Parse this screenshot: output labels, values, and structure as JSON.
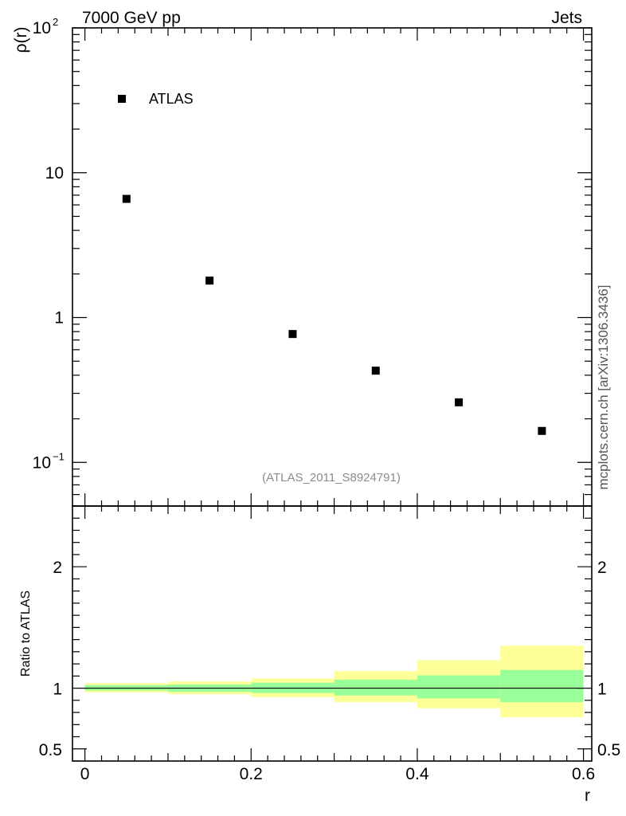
{
  "header": {
    "left_title": "7000 GeV pp",
    "right_title": "Jets"
  },
  "side_label": "mcplots.cern.ch [arXiv:1306.3436]",
  "analysis_label": "(ATLAS_2011_S8924791)",
  "colors": {
    "data_marker": "#000000",
    "band_inner": "#99ff99",
    "band_outer": "#ffff99",
    "frame": "#000000",
    "annotation": "#8c8c8c"
  },
  "chart_data": [
    {
      "type": "scatter",
      "panel": "main",
      "ylabel": "ρ(r)",
      "yscale": "log",
      "ylim": [
        0.05,
        100
      ],
      "xlim": [
        -0.015,
        0.61
      ],
      "y_ticks": [
        {
          "value": 0.1,
          "label": "10",
          "sup": "−1"
        },
        {
          "value": 1,
          "label": "1",
          "sup": ""
        },
        {
          "value": 10,
          "label": "10",
          "sup": ""
        },
        {
          "value": 100,
          "label": "10",
          "sup": "2"
        }
      ],
      "legend": {
        "entries": [
          "ATLAS"
        ],
        "placement": "top-left"
      },
      "series": [
        {
          "name": "ATLAS",
          "x": [
            0.05,
            0.15,
            0.25,
            0.35,
            0.45,
            0.55
          ],
          "y": [
            6.6,
            1.8,
            0.77,
            0.43,
            0.26,
            0.165
          ]
        }
      ]
    },
    {
      "type": "area",
      "panel": "ratio",
      "ylabel": "Ratio to ATLAS",
      "xlabel": "r",
      "ylim": [
        0.4,
        2.5
      ],
      "xlim": [
        -0.015,
        0.61
      ],
      "x_ticks": [
        {
          "value": 0,
          "label": "0"
        },
        {
          "value": 0.2,
          "label": "0.2"
        },
        {
          "value": 0.4,
          "label": "0.4"
        },
        {
          "value": 0.6,
          "label": "0.6"
        }
      ],
      "y_ticks": [
        {
          "value": 0.5,
          "label": "0.5"
        },
        {
          "value": 1,
          "label": "1"
        },
        {
          "value": 2,
          "label": "2"
        }
      ],
      "reference_line": 1,
      "bins": [
        {
          "x_low": 0.0,
          "x_high": 0.1,
          "inner_low": 0.98,
          "inner_high": 1.025,
          "outer_low": 0.965,
          "outer_high": 1.04
        },
        {
          "x_low": 0.1,
          "x_high": 0.2,
          "inner_low": 0.97,
          "inner_high": 1.03,
          "outer_low": 0.95,
          "outer_high": 1.055
        },
        {
          "x_low": 0.2,
          "x_high": 0.3,
          "inner_low": 0.96,
          "inner_high": 1.045,
          "outer_low": 0.925,
          "outer_high": 1.08
        },
        {
          "x_low": 0.3,
          "x_high": 0.4,
          "inner_low": 0.94,
          "inner_high": 1.07,
          "outer_low": 0.885,
          "outer_high": 1.14
        },
        {
          "x_low": 0.4,
          "x_high": 0.5,
          "inner_low": 0.915,
          "inner_high": 1.105,
          "outer_low": 0.835,
          "outer_high": 1.23
        },
        {
          "x_low": 0.5,
          "x_high": 0.6,
          "inner_low": 0.885,
          "inner_high": 1.15,
          "outer_low": 0.76,
          "outer_high": 1.35
        }
      ]
    }
  ]
}
